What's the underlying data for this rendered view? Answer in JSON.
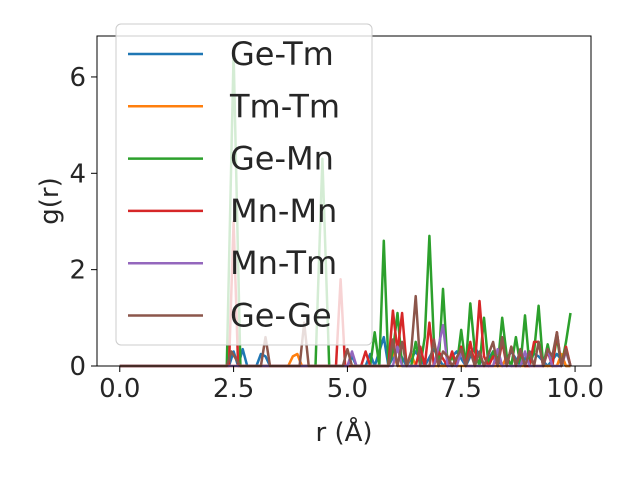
{
  "chart_data": {
    "type": "line",
    "xlabel": "r (Å)",
    "ylabel": "g(r)",
    "xlim": [
      -0.5,
      10.35
    ],
    "ylim": [
      0,
      6.85
    ],
    "xticks": [
      "0.0",
      "2.5",
      "5.0",
      "7.5",
      "10.0"
    ],
    "yticks": [
      "0",
      "2",
      "4",
      "6"
    ],
    "legend_position": "top-left",
    "grid": false,
    "series": [
      {
        "name": "Ge-Tm",
        "color": "#1f77b4",
        "x": [
          0,
          2.4,
          2.5,
          2.6,
          2.7,
          2.8,
          3.0,
          3.1,
          3.2,
          3.3,
          3.5,
          5.0,
          5.1,
          5.2,
          5.4,
          5.5,
          5.6,
          5.8,
          5.9,
          6.1,
          6.3,
          6.5,
          6.7,
          6.9,
          7.1,
          7.4,
          7.6,
          7.8,
          8.0,
          8.2,
          8.4,
          8.6,
          8.8,
          9.0,
          9.2,
          9.4,
          9.6,
          9.8,
          9.9
        ],
        "y": [
          0,
          0,
          0.3,
          0,
          0.35,
          0,
          0,
          0.25,
          0.2,
          0,
          0,
          0,
          0.2,
          0,
          0,
          0.25,
          0,
          0.6,
          0,
          0.35,
          0,
          0.3,
          0,
          0.35,
          0,
          0.3,
          0,
          0.4,
          0,
          0.3,
          0,
          0.3,
          0,
          0.3,
          0.2,
          0,
          0.25,
          0,
          0
        ]
      },
      {
        "name": "Tm-Tm",
        "color": "#ff7f0e",
        "x": [
          0,
          3.7,
          3.8,
          3.9,
          4.0,
          5.9,
          6.0,
          6.1,
          6.3,
          6.4,
          6.5,
          6.7,
          7.2,
          7.3,
          7.4,
          8.4,
          8.5,
          8.6,
          9.6,
          9.7,
          9.8,
          9.9
        ],
        "y": [
          0,
          0,
          0.2,
          0.25,
          0,
          0,
          0.3,
          0,
          0,
          0.25,
          0,
          0,
          0,
          0.2,
          0,
          0,
          0.2,
          0,
          0,
          0.25,
          0,
          0
        ]
      },
      {
        "name": "Ge-Mn",
        "color": "#2ca02c",
        "x": [
          0,
          2.35,
          2.5,
          2.65,
          2.8,
          4.3,
          4.45,
          4.6,
          5.5,
          5.6,
          5.7,
          5.8,
          5.9,
          6.0,
          6.1,
          6.2,
          6.4,
          6.5,
          6.6,
          6.7,
          6.8,
          6.9,
          7.0,
          7.1,
          7.2,
          7.3,
          7.4,
          7.5,
          7.6,
          7.7,
          7.8,
          7.9,
          8.0,
          8.1,
          8.2,
          8.3,
          8.4,
          8.5,
          8.6,
          8.7,
          8.8,
          8.9,
          9.0,
          9.1,
          9.2,
          9.3,
          9.4,
          9.5,
          9.6,
          9.7,
          9.8,
          9.9
        ],
        "y": [
          0,
          0,
          6.5,
          0,
          0,
          0,
          4.3,
          0,
          0,
          0.7,
          0,
          2.6,
          0,
          0.3,
          1.1,
          0,
          0,
          0.5,
          0,
          0.6,
          2.7,
          0.5,
          0,
          1.6,
          0,
          0.2,
          0,
          0.75,
          0,
          1.3,
          0.3,
          0,
          1.0,
          0,
          0.3,
          0,
          1.0,
          0.2,
          0,
          0.6,
          0,
          1.05,
          0,
          0.3,
          1.25,
          0,
          0.45,
          0,
          0.6,
          0,
          0.5,
          1.1
        ]
      },
      {
        "name": "Mn-Mn",
        "color": "#d62728",
        "x": [
          0,
          2.4,
          2.5,
          2.6,
          4.75,
          4.85,
          4.95,
          5.3,
          5.4,
          5.5,
          5.9,
          6.0,
          6.1,
          6.2,
          6.3,
          6.5,
          6.6,
          6.7,
          6.8,
          6.9,
          7.0,
          7.2,
          7.3,
          7.4,
          7.5,
          7.6,
          7.7,
          7.8,
          7.9,
          8.0,
          8.1,
          8.2,
          8.3,
          8.4,
          8.5,
          8.6,
          8.7,
          8.8,
          8.9,
          9.0,
          9.1,
          9.2,
          9.3,
          9.4,
          9.5,
          9.6,
          9.7,
          9.8,
          9.9
        ],
        "y": [
          0,
          0,
          3.0,
          0,
          0,
          1.8,
          0,
          0,
          0.3,
          0,
          0,
          1.15,
          0.3,
          1.1,
          0,
          0,
          0.4,
          0,
          0.9,
          0,
          0.3,
          0,
          0.3,
          0,
          0.4,
          0,
          0.5,
          0,
          1.35,
          0.2,
          0,
          0.2,
          0,
          0.5,
          0,
          0.4,
          0,
          0.3,
          0,
          0,
          0.5,
          0.5,
          0,
          0.3,
          0,
          0.7,
          0,
          0.4,
          0
        ]
      },
      {
        "name": "Mn-Tm",
        "color": "#9467bd",
        "x": [
          0,
          5.0,
          5.1,
          5.2,
          6.0,
          6.1,
          6.2,
          6.9,
          7.0,
          7.1,
          7.2,
          7.4,
          7.5,
          7.6,
          8.2,
          8.3,
          8.4,
          8.8,
          8.9,
          9.0,
          9.3,
          9.4,
          9.5,
          9.7,
          9.8,
          9.9
        ],
        "y": [
          0,
          0,
          0.3,
          0,
          0,
          0.4,
          0,
          0,
          0.4,
          0.85,
          0,
          0,
          0.3,
          0,
          0,
          0.35,
          0,
          0,
          0.3,
          0,
          0,
          0.35,
          0,
          0,
          0.3,
          0
        ]
      },
      {
        "name": "Ge-Ge",
        "color": "#8c564b",
        "x": [
          0,
          2.35,
          2.45,
          2.55,
          2.65,
          3.1,
          3.2,
          3.3,
          3.95,
          4.05,
          4.15,
          4.9,
          5.0,
          5.1,
          5.9,
          6.0,
          6.1,
          6.2,
          6.3,
          6.4,
          6.5,
          6.6,
          6.8,
          6.9,
          7.0,
          7.1,
          7.2,
          7.3,
          7.5,
          7.6,
          7.7,
          7.8,
          7.9,
          8.0,
          8.1,
          8.2,
          8.3,
          8.4,
          8.5,
          8.6,
          8.7,
          8.8,
          8.9,
          9.0,
          9.1,
          9.2,
          9.3,
          9.4,
          9.5,
          9.6,
          9.7,
          9.8,
          9.9
        ],
        "y": [
          0,
          0,
          0.3,
          0.15,
          0,
          0,
          0.6,
          0,
          0,
          0.9,
          0,
          0,
          0.35,
          0,
          0,
          0.55,
          0,
          0.5,
          0,
          0.3,
          1.45,
          0,
          0,
          0.55,
          0,
          0.3,
          0.2,
          0,
          0.35,
          0,
          0.3,
          0,
          0.3,
          0,
          0.25,
          0.5,
          0,
          0.6,
          0,
          0.4,
          0,
          0.35,
          0,
          0.3,
          0,
          0.5,
          0,
          0.35,
          0.2,
          0.7,
          0,
          0.35,
          0
        ]
      }
    ]
  }
}
